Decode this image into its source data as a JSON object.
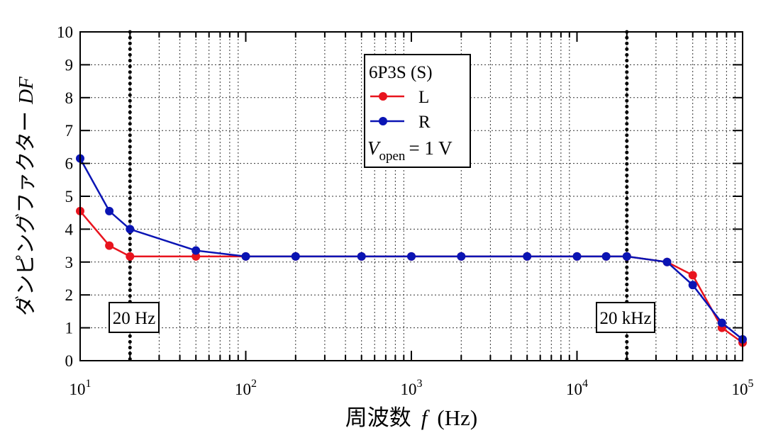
{
  "chart_data": {
    "type": "line",
    "xlabel": "周波数 f (Hz)",
    "xlabel_parts": {
      "prefix": "周波数",
      "var": "f",
      "unit": "(Hz)"
    },
    "ylabel": "ダンピングファクター DF",
    "ylabel_parts": {
      "prefix": "ダンピングファクター",
      "var": "DF"
    },
    "xscale": "log",
    "xlim": [
      10,
      100000
    ],
    "ylim": [
      0,
      10
    ],
    "grid": true,
    "x_ticks": [
      {
        "value": 10,
        "base": "10",
        "exp": "1"
      },
      {
        "value": 100,
        "base": "10",
        "exp": "2"
      },
      {
        "value": 1000,
        "base": "10",
        "exp": "3"
      },
      {
        "value": 10000,
        "base": "10",
        "exp": "4"
      },
      {
        "value": 100000,
        "base": "10",
        "exp": "5"
      }
    ],
    "y_ticks": [
      "0",
      "1",
      "2",
      "3",
      "4",
      "5",
      "6",
      "7",
      "8",
      "9",
      "10"
    ],
    "legend": {
      "title": "6P3S (S)",
      "placement": "top-center",
      "condition": {
        "var": "V",
        "sub": "open",
        "rest": "= 1 V"
      }
    },
    "series": [
      {
        "name": "L",
        "color": "#e8141e",
        "x": [
          10,
          15,
          20,
          50,
          100,
          200,
          500,
          1000,
          2000,
          5000,
          10000,
          15000,
          20000,
          35000,
          50000,
          75000,
          100000
        ],
        "y": [
          4.55,
          3.5,
          3.17,
          3.17,
          3.17,
          3.17,
          3.17,
          3.17,
          3.17,
          3.17,
          3.17,
          3.17,
          3.17,
          3.0,
          2.6,
          1.0,
          0.55
        ]
      },
      {
        "name": "R",
        "color": "#0a14b4",
        "x": [
          10,
          15,
          20,
          50,
          100,
          200,
          500,
          1000,
          2000,
          5000,
          10000,
          15000,
          20000,
          35000,
          50000,
          75000,
          100000
        ],
        "y": [
          6.15,
          4.55,
          4.0,
          3.35,
          3.17,
          3.17,
          3.17,
          3.17,
          3.17,
          3.17,
          3.17,
          3.17,
          3.17,
          3.0,
          2.3,
          1.15,
          0.65
        ]
      }
    ],
    "annotations": [
      {
        "x": 20,
        "label": "20 Hz"
      },
      {
        "x": 20000,
        "label": "20 kHz"
      }
    ]
  }
}
